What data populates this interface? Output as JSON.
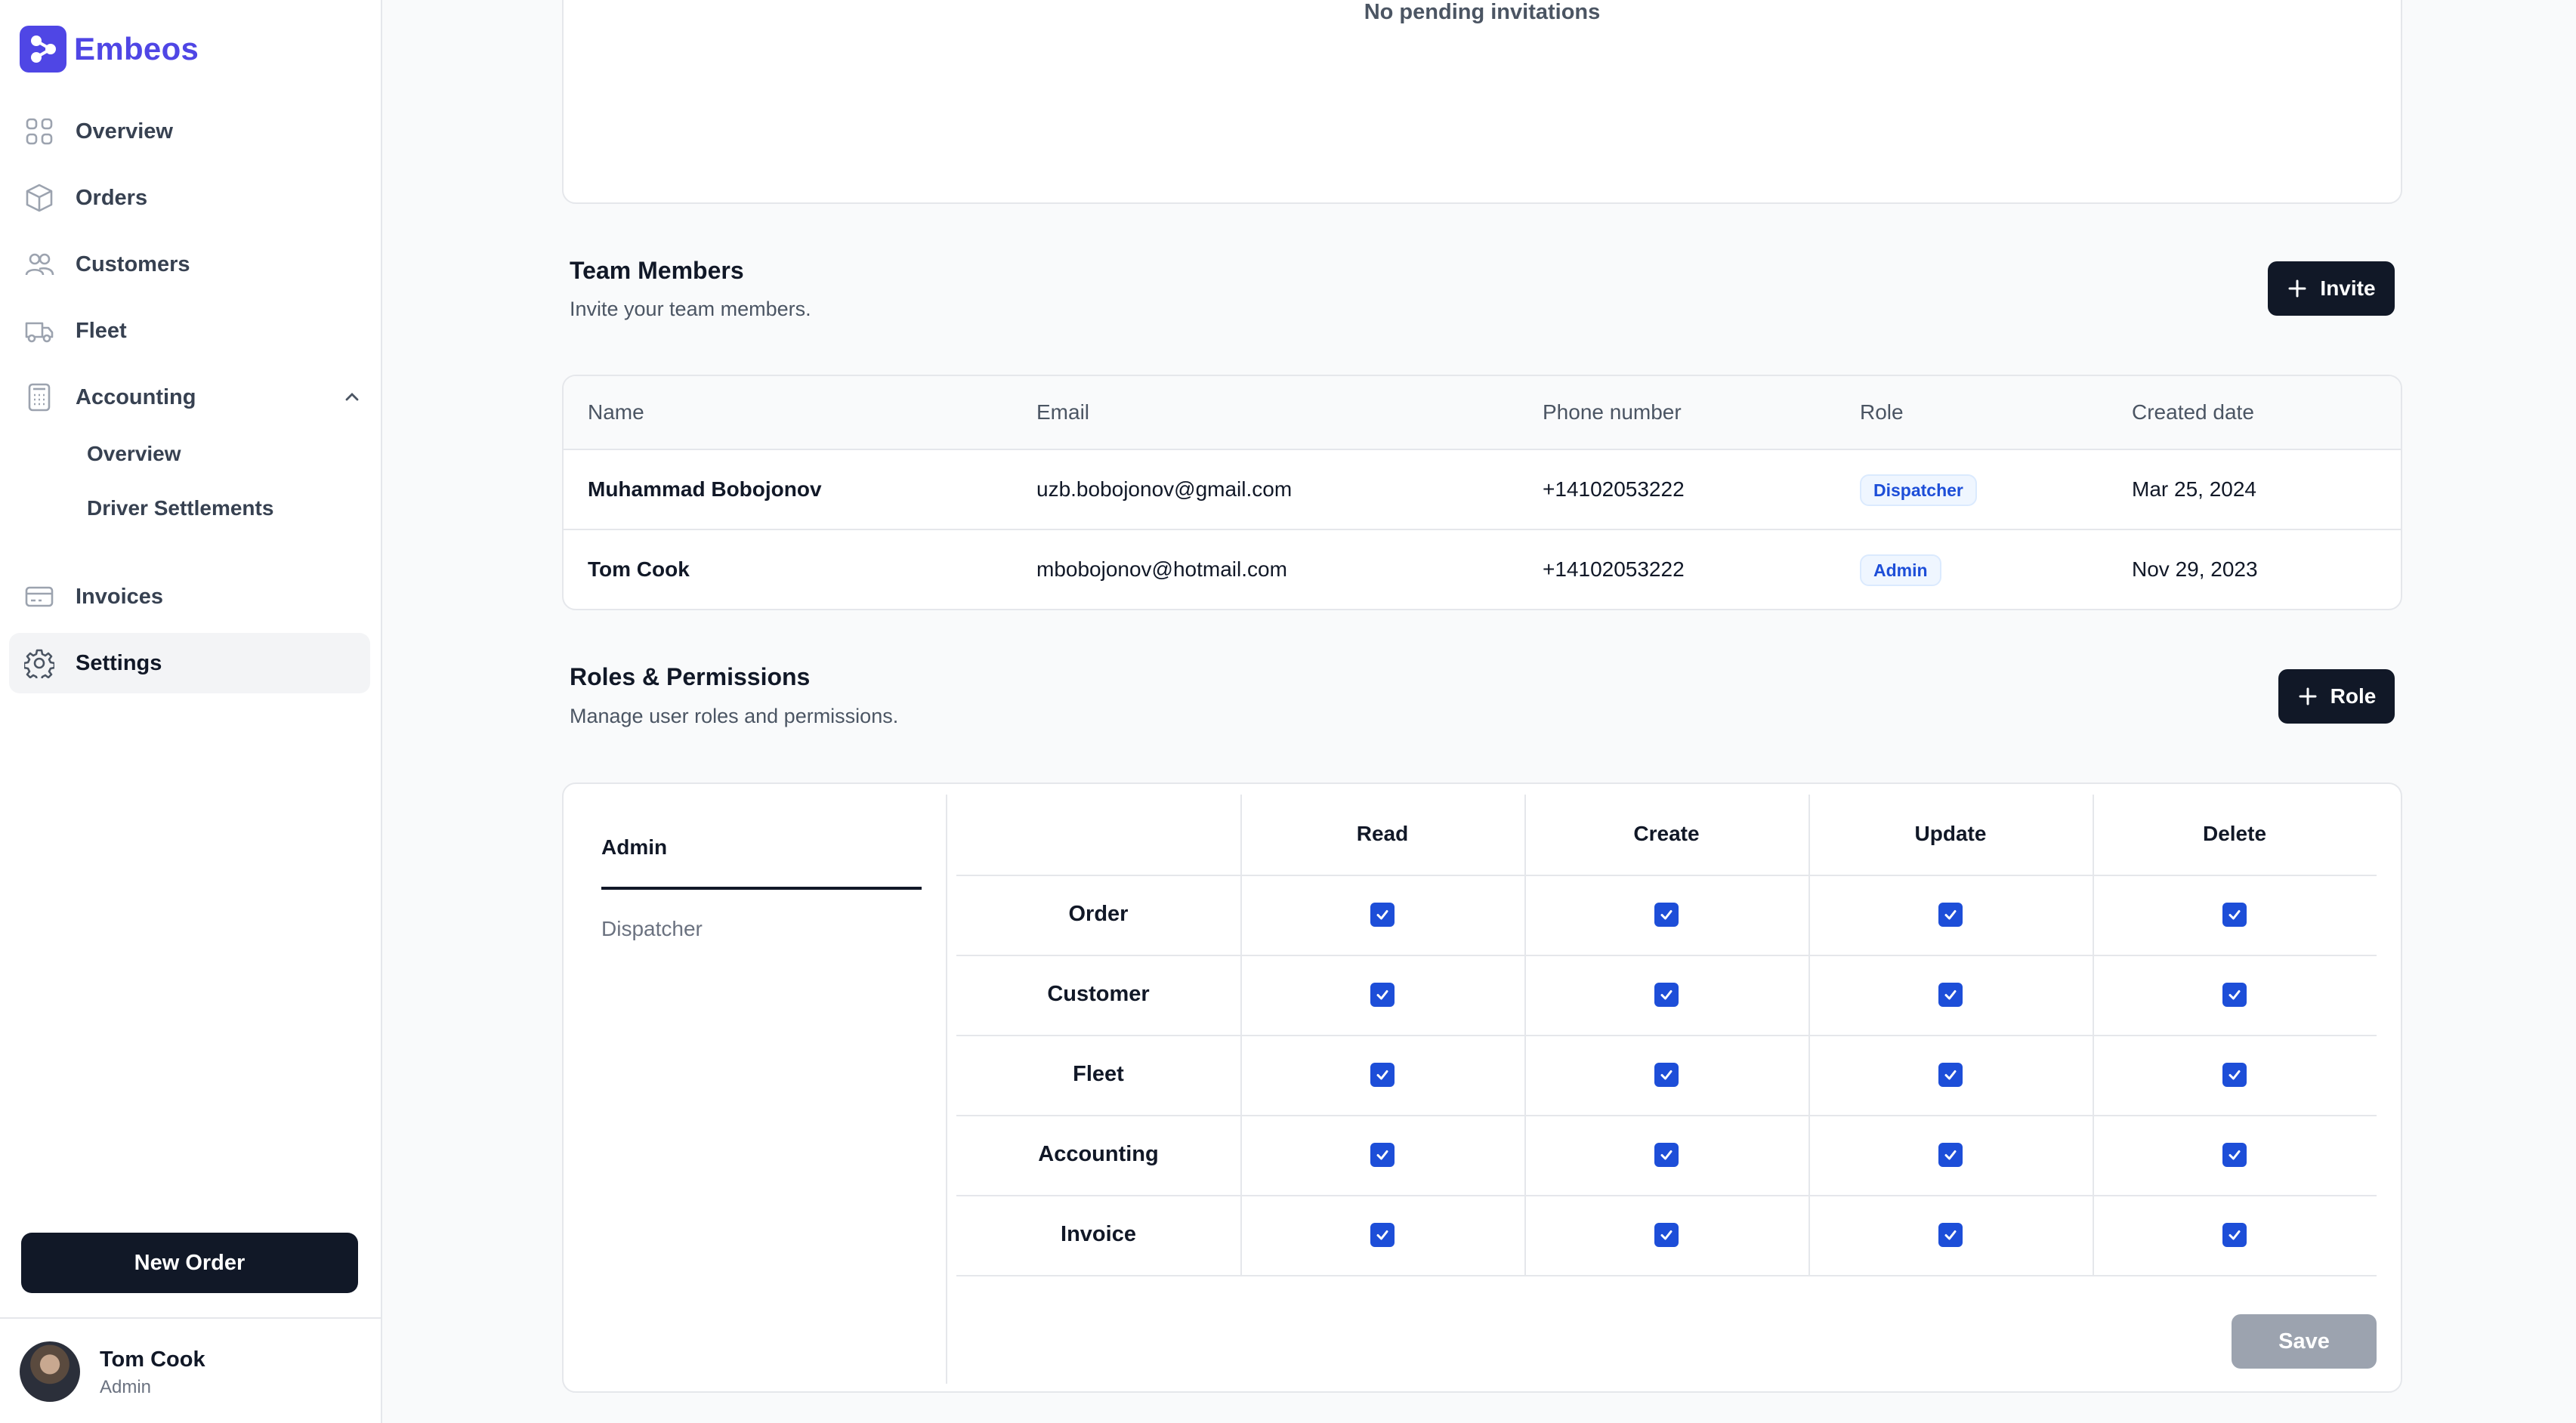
{
  "app": {
    "name": "Embeos"
  },
  "sidebar": {
    "items": [
      {
        "label": "Overview",
        "icon": "grid-icon"
      },
      {
        "label": "Orders",
        "icon": "box-icon"
      },
      {
        "label": "Customers",
        "icon": "users-icon"
      },
      {
        "label": "Fleet",
        "icon": "truck-icon"
      },
      {
        "label": "Accounting",
        "icon": "calculator-icon",
        "expanded": true
      },
      {
        "label": "Invoices",
        "icon": "credit-card-icon"
      },
      {
        "label": "Settings",
        "icon": "gear-icon",
        "active": true
      }
    ],
    "accounting_sub": [
      "Overview",
      "Driver Settlements"
    ],
    "new_order_label": "New Order",
    "user": {
      "name": "Tom Cook",
      "role": "Admin"
    }
  },
  "invitations": {
    "empty_text": "No pending invitations"
  },
  "team": {
    "title": "Team Members",
    "subtitle": "Invite your team members.",
    "invite_label": "Invite",
    "columns": [
      "Name",
      "Email",
      "Phone number",
      "Role",
      "Created date"
    ],
    "rows": [
      {
        "name": "Muhammad Bobojonov",
        "email": "uzb.bobojonov@gmail.com",
        "phone": "+14102053222",
        "role": "Dispatcher",
        "created": "Mar 25, 2024"
      },
      {
        "name": "Tom Cook",
        "email": "mbobojonov@hotmail.com",
        "phone": "+14102053222",
        "role": "Admin",
        "created": "Nov 29, 2023"
      }
    ]
  },
  "roles": {
    "title": "Roles & Permissions",
    "subtitle": "Manage user roles and permissions.",
    "add_label": "Role",
    "tabs": [
      "Admin",
      "Dispatcher"
    ],
    "active_tab": "Admin",
    "permission_columns": [
      "Read",
      "Create",
      "Update",
      "Delete"
    ],
    "resources": [
      "Order",
      "Customer",
      "Fleet",
      "Accounting",
      "Invoice"
    ],
    "all_checked": true,
    "save_label": "Save"
  },
  "colors": {
    "brand": "#4f46e5",
    "primary_dark": "#111827",
    "checkbox": "#1d4ed8",
    "badge_text": "#1d4ed8"
  }
}
